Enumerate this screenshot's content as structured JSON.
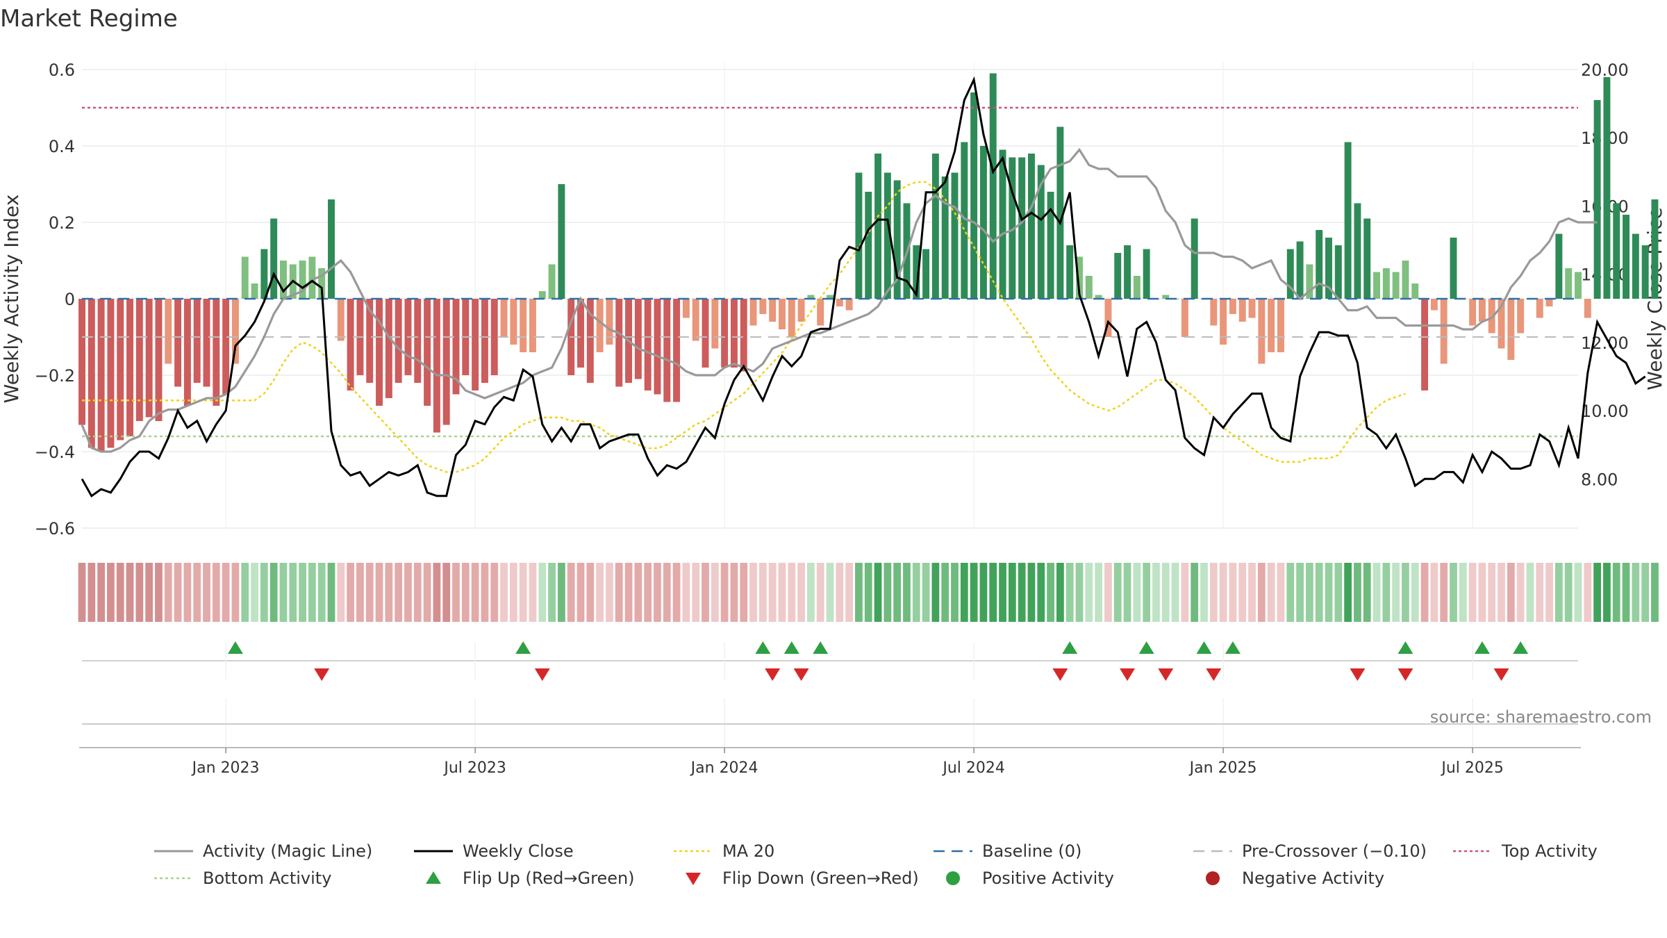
{
  "chart_data": {
    "type": "bar",
    "title": "Market Regime",
    "source": "source: sharemaestro.com",
    "left_axis": {
      "label": "Weekly Activity Index",
      "ylim": [
        -0.6,
        0.6
      ],
      "ticks": [
        {
          "value": 0.6,
          "label": "0.6"
        },
        {
          "value": 0.4,
          "label": "0.4"
        },
        {
          "value": 0.2,
          "label": "0.2"
        },
        {
          "value": 0,
          "label": "0"
        },
        {
          "value": -0.2,
          "label": "−0.2"
        },
        {
          "value": -0.4,
          "label": "−0.4"
        },
        {
          "value": -0.6,
          "label": "−0.6"
        }
      ]
    },
    "right_axis": {
      "label": "Weekly Close Price",
      "ylim": [
        6.6,
        20.0
      ],
      "ticks": [
        {
          "value": 20,
          "label": "20.00"
        },
        {
          "value": 18,
          "label": "18.00"
        },
        {
          "value": 16,
          "label": "16.00"
        },
        {
          "value": 14,
          "label": "14.00"
        },
        {
          "value": 12,
          "label": "12.00"
        },
        {
          "value": 10,
          "label": "10.00"
        },
        {
          "value": 8,
          "label": "8.00"
        }
      ]
    },
    "x_axis": {
      "weeks": 157,
      "start_week": 1,
      "ticks": [
        {
          "week": 16,
          "label": "Jan 2023"
        },
        {
          "week": 42,
          "label": "Jul 2023"
        },
        {
          "week": 68,
          "label": "Jan 2024"
        },
        {
          "week": 94,
          "label": "Jul 2024"
        },
        {
          "week": 120,
          "label": "Jan 2025"
        },
        {
          "week": 146,
          "label": "Jul 2025"
        }
      ]
    },
    "levels": {
      "baseline": 0,
      "pre_crossover": -0.1,
      "top": 0.5,
      "bottom": -0.36
    },
    "series": {
      "activity": [
        -0.33,
        -0.39,
        -0.4,
        -0.4,
        -0.39,
        -0.37,
        -0.36,
        -0.32,
        -0.3,
        -0.29,
        -0.29,
        -0.28,
        -0.27,
        -0.26,
        -0.26,
        -0.25,
        -0.23,
        -0.19,
        -0.15,
        -0.1,
        -0.04,
        0.0,
        0.01,
        0.02,
        0.05,
        0.06,
        0.08,
        0.1,
        0.07,
        0.02,
        -0.03,
        -0.06,
        -0.1,
        -0.13,
        -0.15,
        -0.16,
        -0.18,
        -0.2,
        -0.2,
        -0.21,
        -0.24,
        -0.25,
        -0.26,
        -0.25,
        -0.24,
        -0.23,
        -0.22,
        -0.2,
        -0.19,
        -0.18,
        -0.13,
        -0.06,
        0.0,
        -0.04,
        -0.06,
        -0.08,
        -0.09,
        -0.11,
        -0.13,
        -0.14,
        -0.15,
        -0.16,
        -0.17,
        -0.19,
        -0.2,
        -0.2,
        -0.2,
        -0.18,
        -0.17,
        -0.18,
        -0.19,
        -0.17,
        -0.13,
        -0.12,
        -0.11,
        -0.1,
        -0.09,
        -0.09,
        -0.08,
        -0.07,
        -0.06,
        -0.05,
        -0.04,
        -0.02,
        0.02,
        0.05,
        0.12,
        0.2,
        0.25,
        0.27,
        0.25,
        0.24,
        0.21,
        0.2,
        0.18,
        0.15,
        0.17,
        0.18,
        0.2,
        0.24,
        0.3,
        0.34,
        0.35,
        0.36,
        0.39,
        0.35,
        0.34,
        0.34,
        0.32,
        0.32,
        0.32,
        0.32,
        0.29,
        0.23,
        0.2,
        0.14,
        0.12,
        0.12,
        0.12,
        0.11,
        0.11,
        0.1,
        0.08,
        0.09,
        0.1,
        0.05,
        0.03,
        0.0,
        0.02,
        0.04,
        0.03,
        0.0,
        -0.03,
        -0.03,
        -0.02,
        -0.05,
        -0.05,
        -0.05,
        -0.07,
        -0.07,
        -0.07,
        -0.07,
        -0.07,
        -0.07,
        -0.08,
        -0.08,
        -0.06,
        -0.05,
        -0.02,
        0.03,
        0.06,
        0.1,
        0.12,
        0.15,
        0.2,
        0.21,
        0.2,
        0.2,
        0.2
      ],
      "weekly_close": [
        8.0,
        7.5,
        7.7,
        7.6,
        8.0,
        8.5,
        8.8,
        8.8,
        8.6,
        9.2,
        10.0,
        9.5,
        9.7,
        9.1,
        9.6,
        10.0,
        11.9,
        12.2,
        12.6,
        13.2,
        14.0,
        13.5,
        13.8,
        13.6,
        13.8,
        13.6,
        9.4,
        8.4,
        8.1,
        8.2,
        7.8,
        8.0,
        8.2,
        8.1,
        8.2,
        8.4,
        7.6,
        7.5,
        7.5,
        8.7,
        9.0,
        9.7,
        9.6,
        10.1,
        10.4,
        10.3,
        11.2,
        11.0,
        9.6,
        9.1,
        9.5,
        9.1,
        9.6,
        9.6,
        8.9,
        9.1,
        9.2,
        9.3,
        9.3,
        8.6,
        8.1,
        8.4,
        8.3,
        8.5,
        9.0,
        9.5,
        9.2,
        10.2,
        10.9,
        11.3,
        10.8,
        10.3,
        11.0,
        11.6,
        11.3,
        11.6,
        12.3,
        12.4,
        12.4,
        14.4,
        14.8,
        14.7,
        15.3,
        15.6,
        15.6,
        13.9,
        13.8,
        13.4,
        16.4,
        16.4,
        16.7,
        17.6,
        19.1,
        19.7,
        18.1,
        17.0,
        17.4,
        16.4,
        15.6,
        15.8,
        15.6,
        15.9,
        15.5,
        16.4,
        13.4,
        12.6,
        11.6,
        12.6,
        12.3,
        11.0,
        12.4,
        12.6,
        12.0,
        10.9,
        10.6,
        9.2,
        8.9,
        8.7,
        9.8,
        9.5,
        9.9,
        10.2,
        10.5,
        10.5,
        9.5,
        9.2,
        9.1,
        11.0,
        11.7,
        12.3,
        12.3,
        12.2,
        12.2,
        11.4,
        9.5,
        9.3,
        8.9,
        9.3,
        8.6,
        7.8,
        8.0,
        8.0,
        8.2,
        8.2,
        7.9,
        8.7,
        8.2,
        8.8,
        8.6,
        8.3,
        8.3,
        8.4,
        9.3,
        9.1,
        8.4,
        9.5,
        8.6,
        11.1,
        12.6,
        12.1,
        11.6,
        11.4,
        10.8,
        11.0
      ],
      "ma20": [
        10.3,
        10.3,
        10.3,
        10.3,
        10.3,
        10.3,
        10.3,
        10.3,
        10.3,
        10.3,
        10.3,
        10.3,
        10.3,
        10.3,
        10.3,
        10.3,
        10.3,
        10.3,
        10.3,
        10.5,
        10.9,
        11.4,
        11.8,
        12.0,
        11.9,
        11.7,
        11.4,
        11.1,
        10.7,
        10.4,
        10.1,
        9.8,
        9.5,
        9.2,
        8.9,
        8.6,
        8.4,
        8.3,
        8.2,
        8.2,
        8.3,
        8.4,
        8.6,
        8.9,
        9.2,
        9.4,
        9.6,
        9.7,
        9.8,
        9.8,
        9.8,
        9.7,
        9.7,
        9.6,
        9.5,
        9.3,
        9.2,
        9.1,
        9.0,
        8.9,
        8.9,
        9.0,
        9.2,
        9.4,
        9.6,
        9.7,
        9.9,
        10.1,
        10.3,
        10.5,
        10.8,
        11.1,
        11.4,
        11.7,
        12.1,
        12.5,
        12.9,
        13.3,
        13.7,
        14.0,
        14.4,
        14.8,
        15.2,
        15.7,
        16.0,
        16.4,
        16.6,
        16.7,
        16.7,
        16.5,
        16.2,
        15.8,
        15.3,
        14.8,
        14.3,
        13.8,
        13.3,
        12.9,
        12.5,
        12.1,
        11.6,
        11.2,
        10.9,
        10.6,
        10.4,
        10.2,
        10.1,
        10.0,
        10.1,
        10.3,
        10.5,
        10.7,
        10.9,
        10.9,
        10.8,
        10.6,
        10.4,
        10.1,
        9.8,
        9.5,
        9.3,
        9.1,
        8.9,
        8.7,
        8.6,
        8.5,
        8.5,
        8.5,
        8.6,
        8.6,
        8.6,
        8.7,
        9.1,
        9.5,
        9.8,
        10.1,
        10.3,
        10.4,
        10.5
      ]
    },
    "bars": [
      -0.33,
      -0.39,
      -0.4,
      -0.39,
      -0.37,
      -0.36,
      -0.32,
      -0.31,
      -0.32,
      -0.17,
      -0.23,
      -0.28,
      -0.22,
      -0.23,
      -0.28,
      -0.25,
      -0.17,
      0.11,
      0.04,
      0.13,
      0.21,
      0.1,
      0.09,
      0.1,
      0.11,
      0.08,
      0.26,
      -0.11,
      -0.24,
      -0.2,
      -0.22,
      -0.28,
      -0.26,
      -0.22,
      -0.2,
      -0.22,
      -0.28,
      -0.35,
      -0.33,
      -0.25,
      -0.2,
      -0.24,
      -0.22,
      -0.2,
      -0.1,
      -0.12,
      -0.14,
      -0.14,
      0.02,
      0.09,
      0.3,
      -0.2,
      -0.18,
      -0.22,
      -0.14,
      -0.12,
      -0.23,
      -0.22,
      -0.21,
      -0.24,
      -0.25,
      -0.27,
      -0.27,
      -0.05,
      -0.11,
      -0.18,
      -0.13,
      -0.18,
      -0.18,
      -0.19,
      -0.07,
      -0.04,
      -0.06,
      -0.08,
      -0.1,
      -0.06,
      0.01,
      -0.07,
      0.01,
      -0.02,
      -0.03,
      0.33,
      0.28,
      0.38,
      0.33,
      0.31,
      0.25,
      0.14,
      0.13,
      0.38,
      0.32,
      0.33,
      0.41,
      0.54,
      0.4,
      0.59,
      0.39,
      0.37,
      0.37,
      0.38,
      0.35,
      0.28,
      0.45,
      0.14,
      0.11,
      0.06,
      0.01,
      -0.1,
      0.12,
      0.14,
      0.06,
      0.13,
      0.0,
      0.01,
      0.0,
      -0.1,
      0.21,
      0.0,
      -0.07,
      -0.12,
      -0.04,
      -0.06,
      -0.05,
      -0.17,
      -0.14,
      -0.14,
      0.13,
      0.15,
      0.09,
      0.18,
      0.16,
      0.14,
      0.41,
      0.25,
      0.21,
      0.07,
      0.08,
      0.07,
      0.1,
      0.04,
      -0.24,
      -0.03,
      -0.17,
      0.16,
      0.0,
      -0.07,
      -0.06,
      -0.09,
      -0.13,
      -0.16,
      -0.09,
      0.0,
      -0.05,
      -0.02,
      0.17,
      0.08,
      0.07,
      -0.05,
      0.52,
      0.58,
      0.25,
      0.22,
      0.17,
      0.14,
      0.26
    ],
    "flip_up_weeks": [
      17,
      47,
      72,
      75,
      78,
      104,
      112,
      118,
      121,
      139,
      147,
      151
    ],
    "flip_down_weeks": [
      26,
      49,
      73,
      76,
      103,
      110,
      114,
      119,
      134,
      139,
      149
    ],
    "regime_strip_source": "bars",
    "legend": [
      {
        "label": "Activity (Magic Line)",
        "kind": "line",
        "color": "#999999"
      },
      {
        "label": "Weekly Close",
        "kind": "line",
        "color": "#000000"
      },
      {
        "label": "MA 20",
        "kind": "dotted",
        "color": "#f2d21b"
      },
      {
        "label": "Baseline (0)",
        "kind": "dashed",
        "color": "#2f6fa7"
      },
      {
        "label": "Pre-Crossover (−0.10)",
        "kind": "dashed",
        "color": "#bbbbbb"
      },
      {
        "label": "Top Activity",
        "kind": "dotted",
        "color": "#cc5577"
      },
      {
        "label": "Bottom Activity",
        "kind": "dotted",
        "color": "#a9d18e"
      },
      {
        "label": "Flip Up (Red→Green)",
        "kind": "tri-up",
        "color": "#2ea043"
      },
      {
        "label": "Flip Down (Green→Red)",
        "kind": "tri-down",
        "color": "#d62728"
      },
      {
        "label": "Positive Activity",
        "kind": "dot",
        "color": "#2ea043"
      },
      {
        "label": "Negative Activity",
        "kind": "dot",
        "color": "#b22222"
      }
    ],
    "colors": {
      "pos_strong": "#2e8b57",
      "pos_light": "#7fbf7f",
      "neg_strong": "#cd5c5c",
      "neg_light": "#e9967a"
    }
  }
}
